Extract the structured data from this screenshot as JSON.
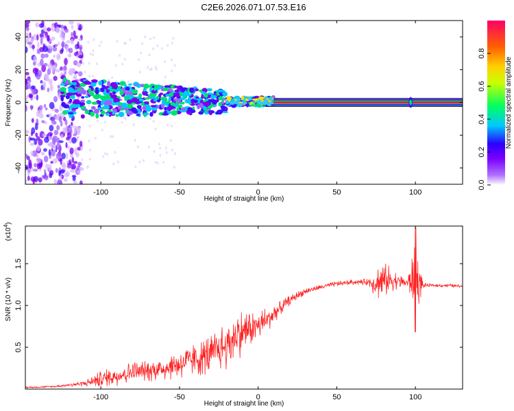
{
  "title": "C2E6.2026.071.07.53.E16",
  "chart_data": [
    {
      "type": "heatmap",
      "name": "spectrogram",
      "xlabel": "Height of straight line (km)",
      "ylabel": "Frequency (Hz)",
      "xlim": [
        -148,
        130
      ],
      "ylim": [
        -50,
        50
      ],
      "x_ticks": [
        -100,
        -50,
        0,
        50,
        100
      ],
      "y_ticks": [
        -40,
        -20,
        0,
        20,
        40
      ],
      "ridge_frequency_hz": 0,
      "colorbar": {
        "label": "Normalized spectral amplitude",
        "range": [
          0,
          1
        ],
        "ticks": [
          "0.0",
          "0.2",
          "0.4",
          "0.6",
          "0.8"
        ],
        "colors": [
          "#ffffff",
          "#9a00ff",
          "#3a00ff",
          "#00d0ff",
          "#00ff40",
          "#ffe000",
          "#ff6000",
          "#ff0060"
        ]
      }
    },
    {
      "type": "line",
      "name": "snr",
      "xlabel": "Height of straight line (km)",
      "ylabel": "SNR (10 * v/v)",
      "yscale_label": "(x10",
      "yscale_exp": "4",
      "xlim": [
        -148,
        130
      ],
      "ylim": [
        0,
        1.95
      ],
      "x_ticks": [
        -100,
        -50,
        0,
        50,
        100
      ],
      "y_ticks": [
        0.5,
        1.0,
        1.5
      ],
      "y_tick_labels": [
        "0.5",
        "1.0",
        "1.5"
      ],
      "series": [
        {
          "name": "SNR",
          "color": "#ff2020",
          "x": [
            -148,
            -130,
            -120,
            -110,
            -100,
            -90,
            -80,
            -70,
            -60,
            -50,
            -40,
            -30,
            -20,
            -15,
            -10,
            -5,
            0,
            5,
            10,
            15,
            20,
            25,
            30,
            40,
            50,
            60,
            70,
            75,
            80,
            85,
            90,
            95,
            100,
            105,
            110,
            120,
            130
          ],
          "values": [
            0.02,
            0.03,
            0.05,
            0.07,
            0.12,
            0.16,
            0.2,
            0.22,
            0.25,
            0.3,
            0.35,
            0.42,
            0.52,
            0.62,
            0.68,
            0.72,
            0.76,
            0.82,
            0.9,
            0.98,
            1.06,
            1.12,
            1.17,
            1.22,
            1.26,
            1.28,
            1.28,
            1.27,
            1.3,
            1.31,
            1.29,
            1.27,
            1.3,
            1.24,
            1.24,
            1.24,
            1.23
          ],
          "noise_amplitude": [
            0.01,
            0.01,
            0.02,
            0.04,
            0.1,
            0.12,
            0.13,
            0.13,
            0.15,
            0.18,
            0.2,
            0.25,
            0.3,
            0.32,
            0.28,
            0.22,
            0.18,
            0.16,
            0.12,
            0.08,
            0.06,
            0.05,
            0.04,
            0.03,
            0.03,
            0.03,
            0.04,
            0.2,
            0.22,
            0.15,
            0.08,
            0.06,
            0.45,
            0.03,
            0.02,
            0.02,
            0.02
          ]
        }
      ]
    }
  ]
}
